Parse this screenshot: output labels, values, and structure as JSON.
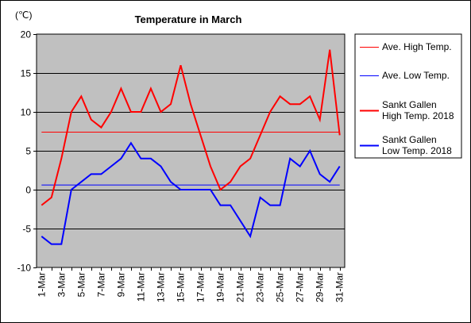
{
  "chart_data": {
    "type": "line",
    "title": "Temperature in March",
    "unit_label": "(℃)",
    "ylim": [
      -10,
      20
    ],
    "y_ticks": [
      20,
      15,
      10,
      5,
      0,
      -5,
      -10
    ],
    "grid": true,
    "legend_position": "right",
    "background_color": "#c0c0c0",
    "x": [
      "1-Mar",
      "2-Mar",
      "3-Mar",
      "4-Mar",
      "5-Mar",
      "6-Mar",
      "7-Mar",
      "8-Mar",
      "9-Mar",
      "10-Mar",
      "11-Mar",
      "12-Mar",
      "13-Mar",
      "14-Mar",
      "15-Mar",
      "16-Mar",
      "17-Mar",
      "18-Mar",
      "19-Mar",
      "20-Mar",
      "21-Mar",
      "22-Mar",
      "23-Mar",
      "24-Mar",
      "25-Mar",
      "26-Mar",
      "27-Mar",
      "28-Mar",
      "29-Mar",
      "30-Mar",
      "31-Mar"
    ],
    "x_tick_labels": [
      "1-Mar",
      "3-Mar",
      "5-Mar",
      "7-Mar",
      "9-Mar",
      "11-Mar",
      "13-Mar",
      "15-Mar",
      "17-Mar",
      "19-Mar",
      "21-Mar",
      "23-Mar",
      "25-Mar",
      "27-Mar",
      "29-Mar",
      "31-Mar"
    ],
    "series": [
      {
        "name": "Ave. High Temp.",
        "color": "#ff0000",
        "style": "thin",
        "values": [
          7.4,
          7.4,
          7.4,
          7.4,
          7.4,
          7.4,
          7.4,
          7.4,
          7.4,
          7.4,
          7.4,
          7.4,
          7.4,
          7.4,
          7.4,
          7.4,
          7.4,
          7.4,
          7.4,
          7.4,
          7.4,
          7.4,
          7.4,
          7.4,
          7.4,
          7.4,
          7.4,
          7.4,
          7.4,
          7.4,
          7.4
        ]
      },
      {
        "name": "Ave. Low Temp.",
        "color": "#0000ff",
        "style": "thin",
        "values": [
          0.6,
          0.6,
          0.6,
          0.6,
          0.6,
          0.6,
          0.6,
          0.6,
          0.6,
          0.6,
          0.6,
          0.6,
          0.6,
          0.6,
          0.6,
          0.6,
          0.6,
          0.6,
          0.6,
          0.6,
          0.6,
          0.6,
          0.6,
          0.6,
          0.6,
          0.6,
          0.6,
          0.6,
          0.6,
          0.6,
          0.6
        ]
      },
      {
        "name": "Sankt Gallen High Temp. 2018",
        "legend_lines": [
          "Sankt Gallen",
          "High Temp. 2018"
        ],
        "color": "#ff0000",
        "style": "thick",
        "values": [
          -2,
          -1,
          4,
          10,
          12,
          9,
          8,
          10,
          13,
          10,
          10,
          13,
          10,
          11,
          16,
          11,
          7,
          3,
          0,
          1,
          3,
          4,
          7,
          10,
          12,
          11,
          11,
          12,
          9,
          18,
          7
        ]
      },
      {
        "name": "Sankt Gallen Low Temp. 2018",
        "legend_lines": [
          "Sankt Gallen",
          "Low Temp. 2018"
        ],
        "color": "#0000ff",
        "style": "thick",
        "values": [
          -6,
          -7,
          -7,
          0,
          1,
          2,
          2,
          3,
          4,
          6,
          4,
          4,
          3,
          1,
          0,
          0,
          0,
          0,
          -2,
          -2,
          -4,
          -6,
          -1,
          -2,
          -2,
          4,
          3,
          5,
          2,
          1,
          3
        ]
      }
    ]
  }
}
